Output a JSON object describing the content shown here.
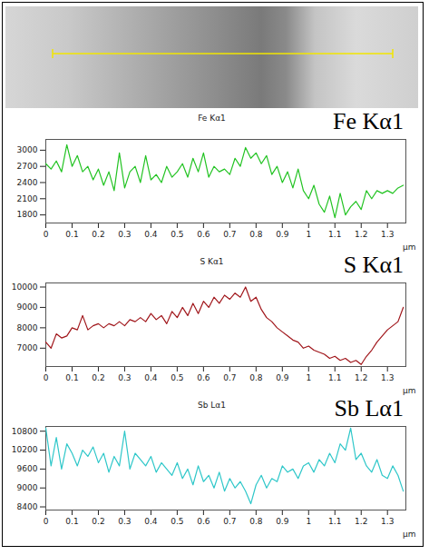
{
  "chart_data": [
    {
      "type": "line",
      "title": "Fe Kα1",
      "annotation": "Fe Kα1",
      "x_label": "µm",
      "color": "#22c322",
      "xlim": [
        0,
        1.37
      ],
      "xticks": [
        0,
        0.1,
        0.2,
        0.3,
        0.4,
        0.5,
        0.6,
        0.7,
        0.8,
        0.9,
        1,
        1.1,
        1.2,
        1.3
      ],
      "ylim": [
        1650,
        3200
      ],
      "yticks": [
        1800,
        2100,
        2400,
        2700,
        3000
      ],
      "x": [
        0,
        0.02,
        0.04,
        0.06,
        0.08,
        0.1,
        0.12,
        0.14,
        0.16,
        0.18,
        0.2,
        0.22,
        0.24,
        0.26,
        0.28,
        0.3,
        0.32,
        0.34,
        0.36,
        0.38,
        0.4,
        0.42,
        0.44,
        0.46,
        0.48,
        0.5,
        0.52,
        0.54,
        0.56,
        0.58,
        0.6,
        0.62,
        0.64,
        0.66,
        0.68,
        0.7,
        0.72,
        0.74,
        0.76,
        0.78,
        0.8,
        0.82,
        0.84,
        0.86,
        0.88,
        0.9,
        0.92,
        0.94,
        0.96,
        0.98,
        1,
        1.02,
        1.04,
        1.06,
        1.08,
        1.1,
        1.12,
        1.14,
        1.16,
        1.18,
        1.2,
        1.22,
        1.24,
        1.26,
        1.28,
        1.3,
        1.32,
        1.34,
        1.36
      ],
      "values": [
        2750,
        2650,
        2800,
        2600,
        3100,
        2700,
        2900,
        2600,
        2700,
        2450,
        2650,
        2350,
        2600,
        2250,
        2950,
        2300,
        2600,
        2700,
        2400,
        2900,
        2450,
        2550,
        2400,
        2700,
        2500,
        2600,
        2750,
        2500,
        2850,
        2600,
        2950,
        2500,
        2700,
        2600,
        2650,
        2550,
        2850,
        2700,
        3050,
        2850,
        2950,
        2750,
        2900,
        2550,
        2700,
        2400,
        2600,
        2300,
        2650,
        2250,
        2100,
        2350,
        2000,
        1850,
        2150,
        1750,
        2200,
        1800,
        1950,
        2050,
        1900,
        2250,
        2100,
        2250,
        2200,
        2250,
        2200,
        2300,
        2350
      ]
    },
    {
      "type": "line",
      "title": "S Kα1",
      "annotation": "S Kα1",
      "x_label": "µm",
      "color": "#a0151a",
      "xlim": [
        0,
        1.37
      ],
      "xticks": [
        0,
        0.1,
        0.2,
        0.3,
        0.4,
        0.5,
        0.6,
        0.7,
        0.8,
        0.9,
        1,
        1.1,
        1.2,
        1.3
      ],
      "ylim": [
        6100,
        10200
      ],
      "yticks": [
        7000,
        8000,
        9000,
        10000
      ],
      "x": [
        0,
        0.02,
        0.04,
        0.06,
        0.08,
        0.1,
        0.12,
        0.14,
        0.16,
        0.18,
        0.2,
        0.22,
        0.24,
        0.26,
        0.28,
        0.3,
        0.32,
        0.34,
        0.36,
        0.38,
        0.4,
        0.42,
        0.44,
        0.46,
        0.48,
        0.5,
        0.52,
        0.54,
        0.56,
        0.58,
        0.6,
        0.62,
        0.64,
        0.66,
        0.68,
        0.7,
        0.72,
        0.74,
        0.76,
        0.78,
        0.8,
        0.82,
        0.84,
        0.86,
        0.88,
        0.9,
        0.92,
        0.94,
        0.96,
        0.98,
        1,
        1.02,
        1.04,
        1.06,
        1.08,
        1.1,
        1.12,
        1.14,
        1.16,
        1.18,
        1.2,
        1.22,
        1.24,
        1.26,
        1.28,
        1.3,
        1.32,
        1.34,
        1.36
      ],
      "values": [
        7300,
        7000,
        7700,
        7500,
        7600,
        8000,
        7900,
        8600,
        7900,
        8100,
        8200,
        8000,
        8200,
        8100,
        8300,
        8100,
        8400,
        8300,
        8500,
        8300,
        8700,
        8400,
        8600,
        8200,
        8800,
        8500,
        9000,
        8600,
        9200,
        8700,
        9300,
        9000,
        9500,
        9200,
        9600,
        9400,
        9700,
        9500,
        10000,
        9300,
        9500,
        8900,
        8500,
        8300,
        8000,
        7800,
        7600,
        7400,
        7300,
        7000,
        7100,
        6900,
        6800,
        6700,
        6500,
        6600,
        6400,
        6500,
        6300,
        6400,
        6200,
        6600,
        6900,
        7300,
        7600,
        7900,
        8100,
        8300,
        9000
      ]
    },
    {
      "type": "line",
      "title": "Sb Lα1",
      "annotation": "Sb Lα1",
      "x_label": "µm",
      "color": "#2ec7c9",
      "xlim": [
        0,
        1.37
      ],
      "xticks": [
        0,
        0.1,
        0.2,
        0.3,
        0.4,
        0.5,
        0.6,
        0.7,
        0.8,
        0.9,
        1,
        1.1,
        1.2,
        1.3
      ],
      "ylim": [
        8300,
        10950
      ],
      "yticks": [
        8400,
        9000,
        9600,
        10200,
        10800
      ],
      "x": [
        0,
        0.02,
        0.04,
        0.06,
        0.08,
        0.1,
        0.12,
        0.14,
        0.16,
        0.18,
        0.2,
        0.22,
        0.24,
        0.26,
        0.28,
        0.3,
        0.32,
        0.34,
        0.36,
        0.38,
        0.4,
        0.42,
        0.44,
        0.46,
        0.48,
        0.5,
        0.52,
        0.54,
        0.56,
        0.58,
        0.6,
        0.62,
        0.64,
        0.66,
        0.68,
        0.7,
        0.72,
        0.74,
        0.76,
        0.78,
        0.8,
        0.82,
        0.84,
        0.86,
        0.88,
        0.9,
        0.92,
        0.94,
        0.96,
        0.98,
        1,
        1.02,
        1.04,
        1.06,
        1.08,
        1.1,
        1.12,
        1.14,
        1.16,
        1.18,
        1.2,
        1.22,
        1.24,
        1.26,
        1.28,
        1.3,
        1.32,
        1.34,
        1.36
      ],
      "values": [
        10900,
        9700,
        10600,
        9600,
        10400,
        10100,
        9700,
        10200,
        10000,
        10300,
        9800,
        10100,
        9500,
        10000,
        9700,
        10800,
        9600,
        10100,
        9900,
        9700,
        10000,
        9500,
        9800,
        9600,
        9400,
        9800,
        9300,
        9600,
        9100,
        9700,
        9200,
        9400,
        9000,
        9500,
        8900,
        9300,
        9000,
        9200,
        8900,
        8500,
        9100,
        9400,
        9000,
        9300,
        9200,
        9700,
        9500,
        9600,
        9300,
        9700,
        9800,
        9500,
        9900,
        9700,
        10100,
        9800,
        10400,
        10200,
        10900,
        9900,
        10100,
        9700,
        9500,
        9900,
        9400,
        9300,
        9700,
        9400,
        8900
      ]
    }
  ]
}
